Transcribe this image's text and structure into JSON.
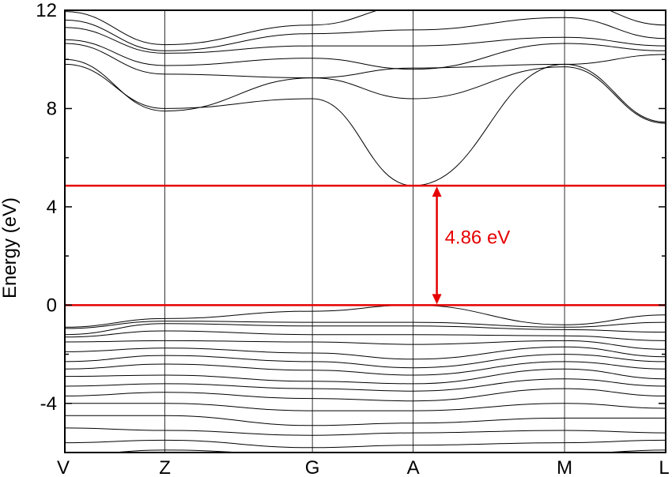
{
  "chart_data": {
    "type": "line",
    "title": "",
    "xlabel": "",
    "ylabel": "Energy (eV)",
    "ylim": [
      -6,
      12
    ],
    "yticks": [
      12,
      8,
      4,
      0,
      -4
    ],
    "kpoints": [
      {
        "label": "V",
        "pos": 0.0
      },
      {
        "label": "Z",
        "pos": 0.1665
      },
      {
        "label": "G",
        "pos": 0.412
      },
      {
        "label": "A",
        "pos": 0.5797
      },
      {
        "label": "M",
        "pos": 0.8317
      },
      {
        "label": "L",
        "pos": 1.0
      }
    ],
    "grid": false,
    "colors": {
      "bands": "#000000",
      "highlight": "#e60000"
    },
    "gap": {
      "value_label": "4.86 eV",
      "cbm": 4.86,
      "vbm": 0.0,
      "arrow_k": "A"
    },
    "conduction_bands": [
      [
        9.8,
        8.0,
        8.4,
        4.86,
        9.8,
        7.45
      ],
      [
        10.0,
        7.9,
        9.25,
        8.4,
        9.7,
        7.4
      ],
      [
        10.65,
        9.4,
        9.25,
        9.65,
        9.8,
        10.2
      ],
      [
        10.8,
        9.75,
        10.05,
        9.6,
        10.65,
        10.35
      ],
      [
        11.3,
        10.25,
        10.55,
        10.55,
        10.9,
        10.55
      ],
      [
        11.6,
        10.35,
        11.05,
        11.2,
        11.7,
        10.85
      ],
      [
        11.95,
        10.6,
        11.4,
        12.2,
        12.4,
        11.4
      ]
    ],
    "valence_bands": [
      [
        -0.9,
        -0.55,
        -0.25,
        0.0,
        -0.8,
        -0.4
      ],
      [
        -0.95,
        -0.65,
        -0.7,
        -0.7,
        -0.9,
        -0.7
      ],
      [
        -1.2,
        -0.75,
        -0.85,
        -0.85,
        -1.0,
        -1.1
      ],
      [
        -1.3,
        -1.05,
        -1.2,
        -1.2,
        -1.25,
        -1.45
      ],
      [
        -1.5,
        -1.45,
        -1.5,
        -1.6,
        -1.45,
        -1.8
      ],
      [
        -1.9,
        -1.75,
        -1.95,
        -2.2,
        -1.7,
        -2.1
      ],
      [
        -2.3,
        -2.05,
        -2.3,
        -2.55,
        -2.0,
        -2.3
      ],
      [
        -2.6,
        -2.4,
        -2.65,
        -2.85,
        -2.3,
        -2.6
      ],
      [
        -2.9,
        -2.85,
        -3.1,
        -3.2,
        -2.6,
        -3.0
      ],
      [
        -3.3,
        -3.2,
        -3.4,
        -3.5,
        -3.0,
        -3.3
      ],
      [
        -3.7,
        -3.55,
        -3.8,
        -3.9,
        -3.4,
        -3.7
      ],
      [
        -4.0,
        -4.0,
        -4.3,
        -4.3,
        -4.0,
        -4.2
      ],
      [
        -4.5,
        -4.5,
        -4.9,
        -4.8,
        -4.6,
        -4.6
      ],
      [
        -5.0,
        -5.1,
        -5.3,
        -5.2,
        -5.1,
        -5.2
      ],
      [
        -5.6,
        -5.5,
        -5.8,
        -5.7,
        -5.6,
        -5.5
      ],
      [
        -6.1,
        -5.9,
        -6.1,
        -6.1,
        -6.05,
        -5.9
      ]
    ]
  }
}
